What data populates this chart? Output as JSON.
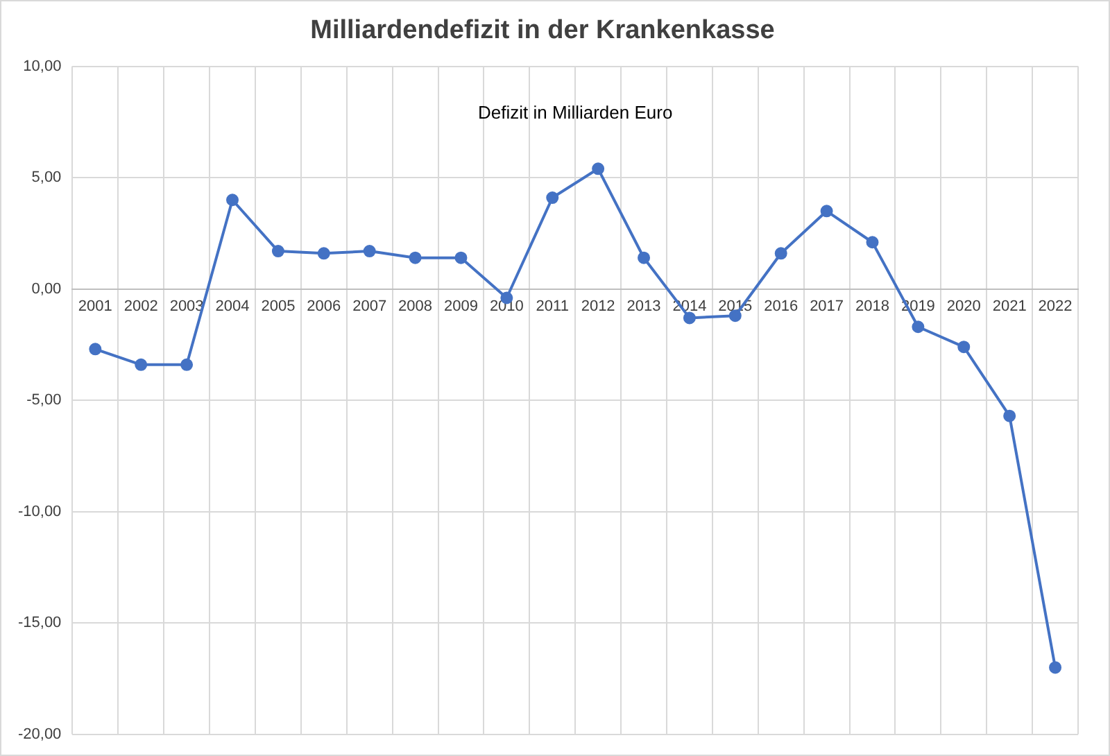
{
  "chart_data": {
    "type": "line",
    "title": "Milliardendefizit in der Krankenkasse",
    "annotations": [
      "Defizit in Milliarden Euro"
    ],
    "categories": [
      "2001",
      "2002",
      "2003",
      "2004",
      "2005",
      "2006",
      "2007",
      "2008",
      "2009",
      "2010",
      "2011",
      "2012",
      "2013",
      "2014",
      "2015",
      "2016",
      "2017",
      "2018",
      "2019",
      "2020",
      "2021",
      "2022"
    ],
    "series": [
      {
        "color": "#4472c4",
        "values": [
          -2.7,
          -3.4,
          -3.4,
          4.0,
          1.7,
          1.6,
          1.7,
          1.4,
          1.4,
          -0.4,
          4.1,
          5.4,
          1.4,
          -1.3,
          -1.2,
          1.6,
          3.5,
          2.1,
          -1.7,
          -2.6,
          -5.7,
          -17.0
        ]
      }
    ],
    "ylim": [
      -20,
      10
    ],
    "yticks": [
      {
        "value": -20,
        "label": "-20,00"
      },
      {
        "value": -15,
        "label": "-15,00"
      },
      {
        "value": -10,
        "label": "-10,00"
      },
      {
        "value": -5,
        "label": "-5,00"
      },
      {
        "value": 0,
        "label": "0,00"
      },
      {
        "value": 5,
        "label": "5,00"
      },
      {
        "value": 10,
        "label": "10,00"
      }
    ],
    "grid": true,
    "legend": false,
    "marker": "circle",
    "line_style": "solid"
  }
}
